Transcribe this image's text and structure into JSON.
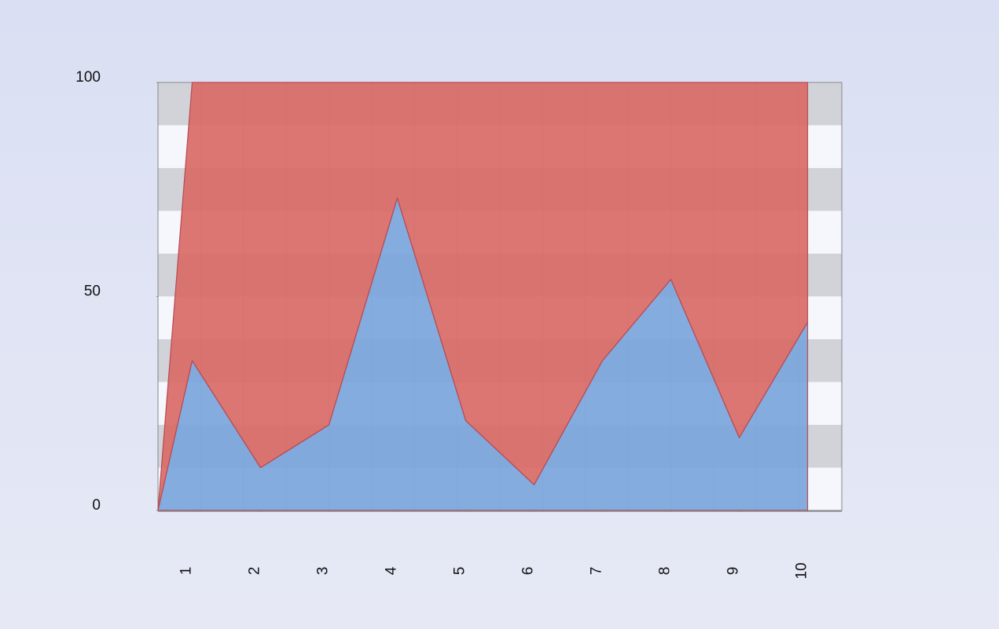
{
  "chart_data": {
    "type": "stacked-area",
    "x": [
      0.5,
      1,
      2,
      3,
      4,
      5,
      6,
      7,
      8,
      9,
      10
    ],
    "series": [
      {
        "color": "#7aa5dc",
        "values": [
          0,
          35,
          10,
          20,
          73,
          21,
          6,
          35,
          54,
          17,
          44
        ]
      },
      {
        "color": "#d86a66",
        "values": [
          0,
          65,
          90,
          80,
          27,
          79,
          94,
          65,
          46,
          83,
          56
        ]
      }
    ],
    "xlim": [
      0.5,
      10.5
    ],
    "xticks": [
      1,
      2,
      3,
      4,
      5,
      6,
      7,
      8,
      9,
      10
    ],
    "ylim": [
      0,
      100
    ],
    "yticks": [
      0,
      50,
      100
    ]
  }
}
